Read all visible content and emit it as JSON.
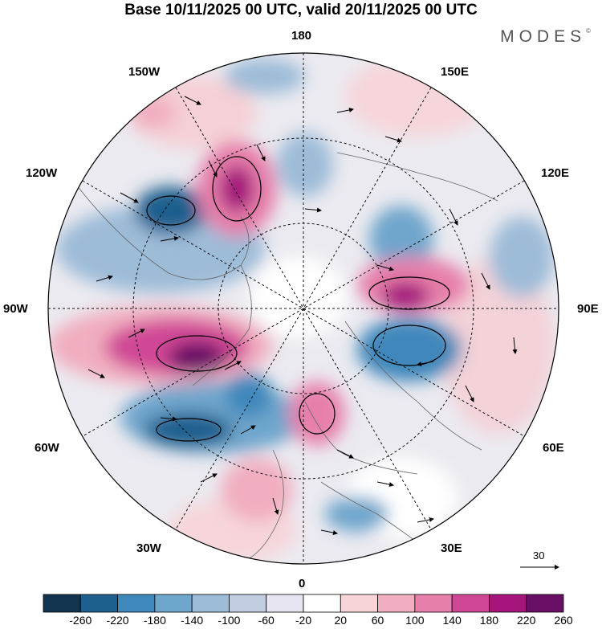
{
  "title": "Base 10/11/2025 00 UTC, valid 20/11/2025 00 UTC",
  "logo": "MODES",
  "logo_mark": "©",
  "longitude_labels": {
    "top": "180",
    "top_left": "150W",
    "top_right": "150E",
    "upper_left": "120W",
    "upper_right": "120E",
    "left": "90W",
    "right": "90E",
    "lower_left": "60W",
    "lower_right": "60E",
    "bottom_left": "30W",
    "bottom_right": "30E",
    "bottom": "0"
  },
  "reference_vector": {
    "label": "30"
  },
  "colorbar": {
    "tick_labels": [
      "-260",
      "-220",
      "-180",
      "-140",
      "-100",
      "-60",
      "-20",
      "20",
      "60",
      "100",
      "140",
      "180",
      "220",
      "260"
    ],
    "colors": [
      "#13344f",
      "#1d5f8e",
      "#3f88bb",
      "#6fa6cc",
      "#9dbcd8",
      "#c3cde2",
      "#e6e4f0",
      "#ffffff",
      "#f7d4d8",
      "#f1aec0",
      "#e77fab",
      "#d04795",
      "#a5157c",
      "#6a0f66"
    ]
  },
  "anomaly_regions": [
    {
      "label": "positive anomaly west of 90W",
      "level": 260
    },
    {
      "label": "positive anomaly near 180/120W",
      "level": 220
    },
    {
      "label": "positive anomaly near 90E",
      "level": 220
    },
    {
      "label": "positive anomaly Europe",
      "level": 180
    },
    {
      "label": "positive anomaly North Atlantic",
      "level": 140
    },
    {
      "label": "negative anomaly near 120W",
      "level": -260
    },
    {
      "label": "negative anomaly near 60W",
      "level": -220
    },
    {
      "label": "negative anomaly near 90E south",
      "level": -180
    },
    {
      "label": "negative anomaly near 120E",
      "level": -100
    },
    {
      "label": "negative anomaly near 150E",
      "level": -100
    }
  ]
}
